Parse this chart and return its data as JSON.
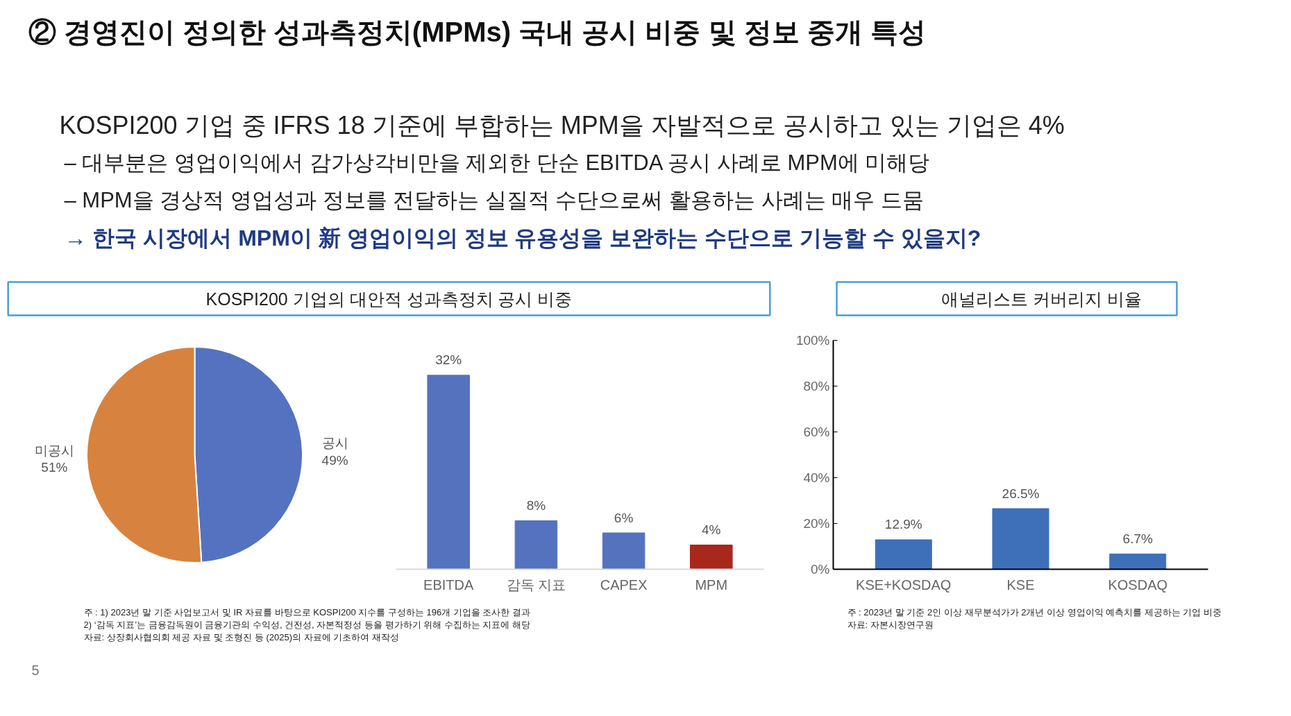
{
  "chart_data": [
    {
      "type": "other",
      "title": "② 경영진이 정의한 성과측정치(MPMs) 국내 공시 비중 및 정보 중개 특성",
      "annotations": [
        "KOSPI200 기업 중 IFRS 18 기준에 부합하는 MPM을 자발적으로 공시하고 있는 기업은 4%",
        "–  대부분은 영업이익에서 감가상각비만을 제외한 단순 EBITDA 공시 사례로 MPM에 미해당",
        "–  MPM을 경상적 영업성과 정보를 전달하는 실질적 수단으로써 활용하는 사례는 매우 드뭄",
        "→ 한국 시장에서 MPM이 新 영업이익의 정보 유용성을 보완하는 수단으로 기능할 수 있을지?",
        "5"
      ]
    },
    {
      "type": "pie",
      "title": "KOSPI200 기업의 대안적 성과측정치 공시 비중",
      "categories": [
        "공시",
        "미공시"
      ],
      "values": [
        49,
        51
      ],
      "colors": [
        "#5572c0",
        "#d88240"
      ],
      "value_labels": [
        "49%",
        "51%"
      ]
    },
    {
      "type": "bar",
      "categories": [
        "EBITDA",
        "감독 지표",
        "CAPEX",
        "MPM"
      ],
      "values": [
        32,
        8,
        6,
        4
      ],
      "colors": [
        "#5572be",
        "#5572be",
        "#5572be",
        "#a8281c"
      ],
      "value_labels": [
        "32%",
        "8%",
        "6%",
        "4%"
      ],
      "annotations": [
        "주  : 1) 2023년 말 기준 사업보고서 및 IR 자료를 바탕으로 KOSPI200 지수를 구성하는 196개 기업을 조사한 결과",
        "       2) ‘감독 지표’는 금융감독원이 금융기관의 수익성, 건전성, 자본적정성 등을 평가하기 위해 수집하는 지표에 해당",
        "자료: 상장회사협의회 제공 자료 및 조형진 등 (2025)의 자료에 기초하여 재작성"
      ]
    },
    {
      "type": "bar",
      "title": "애널리스트 커버리지 비율",
      "categories": [
        "KSE+KOSDAQ",
        "KSE",
        "KOSDAQ"
      ],
      "values": [
        12.9,
        26.5,
        6.7
      ],
      "color": "#3d70b8",
      "value_labels": [
        "12.9%",
        "26.5%",
        "6.7%"
      ],
      "ylim": [
        0,
        100
      ],
      "yticks": [
        {
          "value": 0,
          "label": "0%"
        },
        {
          "value": 20,
          "label": "20%"
        },
        {
          "value": 40,
          "label": "40%"
        },
        {
          "value": 60,
          "label": "60%"
        },
        {
          "value": 80,
          "label": "80%"
        },
        {
          "value": 100,
          "label": "100%"
        }
      ],
      "grid": false,
      "annotations": [
        "주  : 2023년 말 기준 2인 이상 재무분석가가 2개년 이상 영업이익 예측치를 제공하는 기업 비중",
        "자료: 자본시장연구원"
      ]
    }
  ]
}
